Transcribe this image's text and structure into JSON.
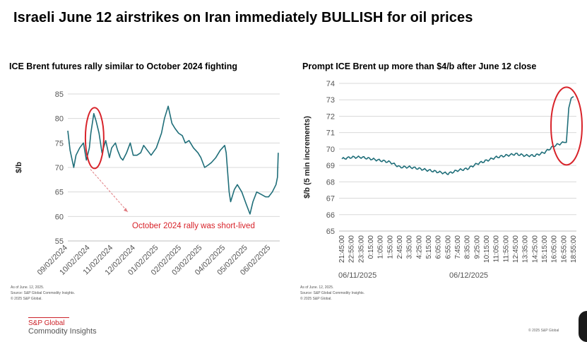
{
  "title": "Israeli June 12 airstrikes on Iran immediately BULLISH for oil prices",
  "left": {
    "subtitle": "ICE Brent futures rally similar to October 2024 fighting",
    "notes": [
      "As of June. 12, 2025.",
      "Source: S&P Global Commodity Insights.",
      "© 2025 S&P Global."
    ]
  },
  "right": {
    "subtitle": "Prompt ICE Brent up more than $4/b after June 12 close",
    "notes": [
      "As of June. 12, 2025.",
      "Source: S&P Global Commodity Insights.",
      "© 2025 S&P Global."
    ]
  },
  "brand": {
    "name": "S&P Global",
    "sub": "Commodity Insights"
  },
  "copyright": "© 2025 S&P Global",
  "colors": {
    "line": "#1f6e79",
    "annotation": "#d8232a",
    "grid": "#d9d9d9"
  },
  "chart_data": [
    {
      "type": "line",
      "title": "ICE Brent futures rally similar to October 2024 fighting",
      "ylabel": "$/b",
      "ylim": [
        55,
        85
      ],
      "yticks": [
        55,
        60,
        65,
        70,
        75,
        80,
        85
      ],
      "xticks": [
        "09/02/2024",
        "10/02/2024",
        "11/02/2024",
        "12/02/2024",
        "01/02/2025",
        "02/02/2025",
        "03/02/2025",
        "04/02/2025",
        "05/02/2025",
        "06/02/2025"
      ],
      "grid": "horizontal",
      "annotation": "October 2024 rally was short-lived",
      "series": [
        {
          "x": [
            "09/02/2024",
            "09/05/2024",
            "09/10/2024",
            "09/13/2024",
            "09/18/2024",
            "09/23/2024",
            "09/27/2024",
            "10/01/2024",
            "10/03/2024",
            "10/07/2024",
            "10/10/2024",
            "10/14/2024",
            "10/18/2024",
            "10/23/2024",
            "10/28/2024",
            "10/31/2024",
            "11/05/2024",
            "11/08/2024",
            "11/12/2024",
            "11/15/2024",
            "11/20/2024",
            "11/25/2024",
            "11/29/2024",
            "12/04/2024",
            "12/09/2024",
            "12/13/2024",
            "12/18/2024",
            "12/23/2024",
            "12/30/2024",
            "01/06/2025",
            "01/10/2025",
            "01/15/2025",
            "01/20/2025",
            "01/24/2025",
            "01/29/2025",
            "02/03/2025",
            "02/07/2025",
            "02/12/2025",
            "02/18/2025",
            "02/24/2025",
            "02/28/2025",
            "03/05/2025",
            "03/10/2025",
            "03/14/2025",
            "03/20/2025",
            "03/26/2025",
            "04/01/2025",
            "04/03/2025",
            "04/07/2025",
            "04/09/2025",
            "04/14/2025",
            "04/18/2025",
            "04/24/2025",
            "04/30/2025",
            "05/05/2025",
            "05/09/2025",
            "05/14/2025",
            "05/20/2025",
            "05/26/2025",
            "05/30/2025",
            "06/04/2025",
            "06/09/2025",
            "06/11/2025",
            "06/12/2025"
          ],
          "y": [
            77.5,
            73.5,
            70,
            72.5,
            74,
            75,
            71.5,
            74,
            77,
            81,
            79.5,
            77,
            73,
            75.5,
            72,
            74,
            75,
            73.5,
            72,
            71.5,
            73,
            75,
            72.5,
            72.5,
            73,
            74.5,
            73.5,
            72.5,
            74,
            77,
            80,
            82.5,
            79,
            78,
            77,
            76.5,
            75,
            75.5,
            74,
            73,
            72,
            70,
            70.5,
            71,
            72,
            73.5,
            74.5,
            73,
            65,
            63,
            65.5,
            66.5,
            65,
            62.5,
            60.5,
            63,
            65,
            64.5,
            64,
            64,
            65,
            66.5,
            68,
            73
          ]
        }
      ]
    },
    {
      "type": "line",
      "title": "Prompt ICE Brent up more than $4/b after June 12 close",
      "ylabel": "$/b (5 min increments)",
      "ylim": [
        65,
        74
      ],
      "yticks": [
        65,
        66,
        67,
        68,
        69,
        70,
        71,
        72,
        73,
        74
      ],
      "xticks": [
        "21:45:00",
        "22:55:00",
        "23:35:00",
        "0:15:00",
        "1:05:00",
        "1:55:00",
        "2:45:00",
        "3:35:00",
        "4:25:00",
        "5:15:00",
        "6:05:00",
        "6:55:00",
        "7:45:00",
        "8:35:00",
        "9:25:00",
        "10:15:00",
        "11:05:00",
        "11:55:00",
        "12:45:00",
        "13:35:00",
        "14:25:00",
        "15:15:00",
        "16:05:00",
        "16:55:00",
        "18:55:00"
      ],
      "date_labels": [
        "06/11/2025",
        "06/12/2025"
      ],
      "grid": "horizontal",
      "series": [
        {
          "x": [
            "21:45:00",
            "22:55:00",
            "23:35:00",
            "0:15:00",
            "1:05:00",
            "1:55:00",
            "2:45:00",
            "3:35:00",
            "4:25:00",
            "5:15:00",
            "6:05:00",
            "6:55:00",
            "7:45:00",
            "8:35:00",
            "9:25:00",
            "10:15:00",
            "11:05:00",
            "11:55:00",
            "12:45:00",
            "13:35:00",
            "14:25:00",
            "15:15:00",
            "16:05:00",
            "16:55:00",
            "17:25:00",
            "17:55:00",
            "18:25:00",
            "18:55:00"
          ],
          "y": [
            69.4,
            69.5,
            69.5,
            69.4,
            69.3,
            69.2,
            68.9,
            68.9,
            68.8,
            68.7,
            68.6,
            68.5,
            68.7,
            68.8,
            69.1,
            69.3,
            69.5,
            69.6,
            69.7,
            69.6,
            69.6,
            69.8,
            70.2,
            70.4,
            70.4,
            72.5,
            73.1,
            73.2
          ]
        }
      ]
    }
  ]
}
